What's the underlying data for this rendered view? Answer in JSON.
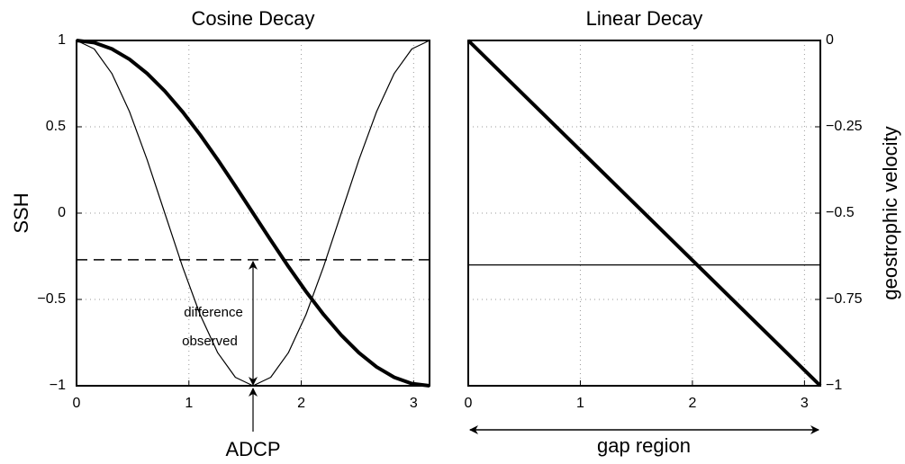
{
  "chart_data": [
    {
      "type": "line",
      "title": "Cosine Decay",
      "ylabel": "SSH",
      "xlim": [
        0,
        3.1416
      ],
      "xticks": [
        0,
        1,
        2,
        3
      ],
      "ylim": [
        -1,
        1
      ],
      "yticks": [
        {
          "value": -1,
          "label": "−1"
        },
        {
          "value": -0.5,
          "label": "−0.5"
        },
        0,
        0.5,
        1
      ],
      "grid": true,
      "x": [
        0,
        0.1571,
        0.3142,
        0.4712,
        0.6283,
        0.7854,
        0.9425,
        1.0996,
        1.2566,
        1.4137,
        1.5708,
        1.7279,
        1.885,
        2.042,
        2.1991,
        2.3562,
        2.5133,
        2.6704,
        2.8274,
        2.9845,
        3.1416
      ],
      "series": [
        {
          "color": "#000000",
          "width": 4,
          "values": [
            1,
            0.9877,
            0.9511,
            0.891,
            0.809,
            0.7071,
            0.5878,
            0.454,
            0.309,
            0.1564,
            0,
            -0.1564,
            -0.309,
            -0.454,
            -0.5878,
            -0.7071,
            -0.809,
            -0.891,
            -0.9511,
            -0.9877,
            -1
          ]
        },
        {
          "color": "#000000",
          "width": 1.2,
          "values": [
            1,
            0.9511,
            0.809,
            0.5878,
            0.309,
            0,
            -0.309,
            -0.5878,
            -0.809,
            -0.9511,
            -1,
            -0.9511,
            -0.809,
            -0.5878,
            -0.309,
            0,
            0.309,
            0.5878,
            0.809,
            0.9511,
            1
          ]
        },
        {
          "color": "#000000",
          "width": 1.5,
          "dashed": true,
          "x": [
            0,
            3.1416
          ],
          "values": [
            -0.27,
            -0.27
          ]
        }
      ],
      "annotations": [
        "difference",
        "observed",
        "ADCP"
      ]
    },
    {
      "type": "line",
      "title": "Linear Decay",
      "y2label": "geostrophic velocity",
      "xlim": [
        0,
        3.1416
      ],
      "xticks": [
        0,
        1,
        2,
        3
      ],
      "y2lim": [
        -1,
        0
      ],
      "y2ticks": [
        {
          "value": -1,
          "label": "−1"
        },
        {
          "value": -0.75,
          "label": "−0.75"
        },
        {
          "value": -0.5,
          "label": "−0.5"
        },
        {
          "value": -0.25,
          "label": "−0.25"
        },
        0
      ],
      "grid": true,
      "x": [
        0,
        3.1416
      ],
      "series": [
        {
          "color": "#000000",
          "width": 4,
          "axis": "y2",
          "values": [
            0,
            -1
          ]
        },
        {
          "color": "#000000",
          "width": 1.2,
          "axis": "y2",
          "values": [
            -0.65,
            -0.65
          ]
        }
      ],
      "annotations": [
        "gap region"
      ]
    }
  ]
}
